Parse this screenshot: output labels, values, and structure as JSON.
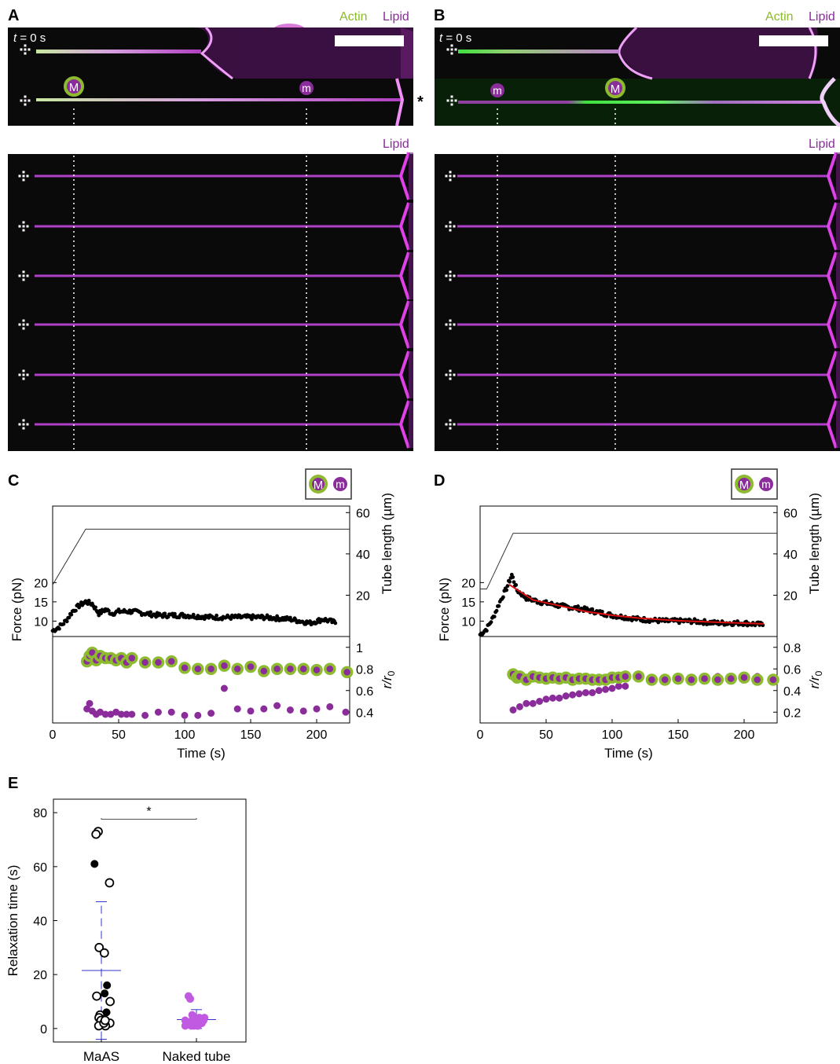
{
  "colors": {
    "actin": "#8dba2e",
    "lipid": "#8a2c9a",
    "lipid_bright": "#e040e8",
    "fit": "#e01010",
    "stats": "#3333cc",
    "naked": "#c05ae0"
  },
  "panels": {
    "A": "A",
    "B": "B",
    "C": "C",
    "D": "D",
    "E": "E"
  },
  "channel_labels": {
    "actin": "Actin",
    "lipid": "Lipid"
  },
  "time_label_var": "t",
  "time_label_rest": " = 0 s",
  "markers": {
    "major": "M",
    "minor": "m"
  },
  "asterisk": "*",
  "icons": {
    "trap": "optical-trap-icon",
    "scale_bar": "scale-bar"
  },
  "axes": {
    "force": "Force (pN)",
    "tube_length": "Tube length (µm)",
    "ratio_r": "r",
    "ratio_r0": "/r",
    "ratio_sub": "0",
    "time": "Time (s)",
    "relaxation": "Relaxation time (s)"
  },
  "ticks": {
    "time": [
      "0",
      "50",
      "100",
      "150",
      "200"
    ],
    "force": [
      "10",
      "15",
      "20"
    ],
    "tube_length": [
      "20",
      "40",
      "60"
    ],
    "ratio_C": [
      "0.4",
      "0.6",
      "0.8",
      "1"
    ],
    "ratio_D": [
      "0.2",
      "0.4",
      "0.6",
      "0.8"
    ],
    "relax": [
      "0",
      "20",
      "40",
      "60",
      "80"
    ],
    "categories": [
      "MaAS",
      "Naked tube"
    ]
  },
  "chart_data": [
    {
      "panel": "C",
      "type": "line",
      "xlabel": "Time (s)",
      "ylabel": "Force (pN)",
      "y2label": "Tube length (µm)",
      "y3label": "r/r0",
      "xlim": [
        0,
        225
      ],
      "force_ylim": [
        6,
        27
      ],
      "length_ylim": [
        0,
        60
      ],
      "ratio_ylim": [
        0.3,
        1.1
      ],
      "tube_length": {
        "x": [
          0,
          25,
          225
        ],
        "y": [
          25,
          52,
          52
        ]
      },
      "force_points": [
        [
          0,
          7.5
        ],
        [
          5,
          8.5
        ],
        [
          10,
          10
        ],
        [
          15,
          12.5
        ],
        [
          20,
          14
        ],
        [
          25,
          15
        ],
        [
          30,
          14.5
        ],
        [
          35,
          12
        ],
        [
          40,
          13
        ],
        [
          45,
          12
        ],
        [
          50,
          12.5
        ],
        [
          60,
          12.5
        ],
        [
          80,
          11.5
        ],
        [
          100,
          11.5
        ],
        [
          120,
          11
        ],
        [
          140,
          11
        ],
        [
          160,
          11
        ],
        [
          180,
          10.5
        ],
        [
          195,
          9.5
        ],
        [
          205,
          10.5
        ],
        [
          215,
          9.5
        ]
      ],
      "ratio_major": [
        [
          26,
          0.87
        ],
        [
          28,
          0.92
        ],
        [
          30,
          0.95
        ],
        [
          33,
          0.88
        ],
        [
          36,
          0.92
        ],
        [
          40,
          0.9
        ],
        [
          44,
          0.9
        ],
        [
          48,
          0.88
        ],
        [
          52,
          0.9
        ],
        [
          56,
          0.86
        ],
        [
          60,
          0.9
        ],
        [
          70,
          0.86
        ],
        [
          80,
          0.86
        ],
        [
          90,
          0.87
        ],
        [
          100,
          0.81
        ],
        [
          110,
          0.8
        ],
        [
          120,
          0.8
        ],
        [
          130,
          0.83
        ],
        [
          140,
          0.8
        ],
        [
          150,
          0.82
        ],
        [
          160,
          0.78
        ],
        [
          170,
          0.8
        ],
        [
          180,
          0.8
        ],
        [
          190,
          0.8
        ],
        [
          200,
          0.79
        ],
        [
          210,
          0.8
        ],
        [
          223,
          0.77
        ]
      ],
      "ratio_minor": [
        [
          26,
          0.43
        ],
        [
          28,
          0.48
        ],
        [
          30,
          0.41
        ],
        [
          33,
          0.38
        ],
        [
          36,
          0.4
        ],
        [
          40,
          0.38
        ],
        [
          44,
          0.38
        ],
        [
          48,
          0.4
        ],
        [
          52,
          0.38
        ],
        [
          56,
          0.38
        ],
        [
          60,
          0.38
        ],
        [
          70,
          0.37
        ],
        [
          80,
          0.4
        ],
        [
          90,
          0.4
        ],
        [
          100,
          0.37
        ],
        [
          110,
          0.37
        ],
        [
          120,
          0.39
        ],
        [
          130,
          0.62
        ],
        [
          140,
          0.43
        ],
        [
          150,
          0.41
        ],
        [
          160,
          0.43
        ],
        [
          170,
          0.46
        ],
        [
          180,
          0.42
        ],
        [
          190,
          0.41
        ],
        [
          200,
          0.43
        ],
        [
          210,
          0.45
        ],
        [
          222,
          0.4
        ]
      ]
    },
    {
      "panel": "D",
      "type": "line",
      "xlabel": "Time (s)",
      "ylabel": "Force (pN)",
      "y2label": "Tube length (µm)",
      "y3label": "r/r0",
      "xlim": [
        0,
        225
      ],
      "force_ylim": [
        6,
        27
      ],
      "length_ylim": [
        0,
        60
      ],
      "ratio_ylim": [
        0.1,
        0.9
      ],
      "tube_length": {
        "x": [
          0,
          5,
          25,
          225
        ],
        "y": [
          23,
          23,
          50,
          50
        ]
      },
      "force_points": [
        [
          0,
          6.5
        ],
        [
          5,
          8
        ],
        [
          10,
          11
        ],
        [
          15,
          15
        ],
        [
          20,
          18.5
        ],
        [
          24,
          22
        ],
        [
          28,
          18
        ],
        [
          35,
          16
        ],
        [
          45,
          15
        ],
        [
          60,
          14
        ],
        [
          80,
          13
        ],
        [
          100,
          11.5
        ],
        [
          120,
          10.5
        ],
        [
          140,
          10
        ],
        [
          160,
          10
        ],
        [
          180,
          9.5
        ],
        [
          200,
          9.5
        ],
        [
          215,
          9
        ]
      ],
      "fit_curve": {
        "x": [
          22,
          40,
          60,
          80,
          100,
          120,
          150,
          180,
          215
        ],
        "y": [
          19.5,
          15.5,
          14,
          12.5,
          11.5,
          10.8,
          10.1,
          9.7,
          9.3
        ]
      },
      "ratio_major": [
        [
          25,
          0.55
        ],
        [
          28,
          0.52
        ],
        [
          30,
          0.53
        ],
        [
          35,
          0.5
        ],
        [
          40,
          0.53
        ],
        [
          45,
          0.52
        ],
        [
          50,
          0.51
        ],
        [
          55,
          0.52
        ],
        [
          60,
          0.51
        ],
        [
          65,
          0.52
        ],
        [
          70,
          0.5
        ],
        [
          75,
          0.51
        ],
        [
          80,
          0.51
        ],
        [
          85,
          0.5
        ],
        [
          90,
          0.5
        ],
        [
          95,
          0.5
        ],
        [
          100,
          0.52
        ],
        [
          105,
          0.52
        ],
        [
          110,
          0.53
        ],
        [
          120,
          0.53
        ],
        [
          130,
          0.5
        ],
        [
          140,
          0.5
        ],
        [
          150,
          0.51
        ],
        [
          160,
          0.5
        ],
        [
          170,
          0.51
        ],
        [
          180,
          0.5
        ],
        [
          190,
          0.51
        ],
        [
          200,
          0.52
        ],
        [
          210,
          0.5
        ],
        [
          222,
          0.5
        ]
      ],
      "ratio_minor": [
        [
          25,
          0.22
        ],
        [
          30,
          0.25
        ],
        [
          35,
          0.28
        ],
        [
          40,
          0.28
        ],
        [
          45,
          0.3
        ],
        [
          50,
          0.32
        ],
        [
          55,
          0.33
        ],
        [
          60,
          0.33
        ],
        [
          65,
          0.35
        ],
        [
          70,
          0.36
        ],
        [
          75,
          0.37
        ],
        [
          80,
          0.38
        ],
        [
          85,
          0.38
        ],
        [
          90,
          0.4
        ],
        [
          95,
          0.41
        ],
        [
          100,
          0.42
        ],
        [
          105,
          0.44
        ],
        [
          110,
          0.44
        ],
        [
          120,
          0.53
        ],
        [
          130,
          0.52
        ],
        [
          140,
          0.52
        ],
        [
          150,
          0.53
        ],
        [
          160,
          0.52
        ],
        [
          170,
          0.51
        ],
        [
          180,
          0.53
        ],
        [
          190,
          0.51
        ],
        [
          200,
          0.52
        ],
        [
          210,
          0.53
        ],
        [
          222,
          0.51
        ]
      ]
    },
    {
      "panel": "E",
      "type": "scatter",
      "ylabel": "Relaxation time (s)",
      "categories": [
        "MaAS",
        "Naked tube"
      ],
      "ylim": [
        -5,
        85
      ],
      "significance": "*",
      "series": [
        {
          "category": "MaAS",
          "filled": false,
          "values": [
            73,
            72,
            54,
            30,
            28,
            12,
            10,
            5,
            4,
            3,
            2,
            1,
            1,
            2,
            3
          ]
        },
        {
          "category": "MaAS",
          "filled": true,
          "values": [
            61,
            16,
            13,
            6
          ]
        },
        {
          "category": "Naked tube",
          "filled": true,
          "values": [
            12,
            11,
            5,
            4,
            4,
            3,
            3,
            3,
            2,
            2,
            2,
            2,
            1,
            1,
            1,
            1,
            1,
            2,
            3,
            4
          ]
        }
      ],
      "summary": [
        {
          "category": "MaAS",
          "mean": 21.5,
          "upper": 47,
          "lower": -4
        },
        {
          "category": "Naked tube",
          "mean": 3.3,
          "upper": 7,
          "lower": 0
        }
      ]
    }
  ]
}
